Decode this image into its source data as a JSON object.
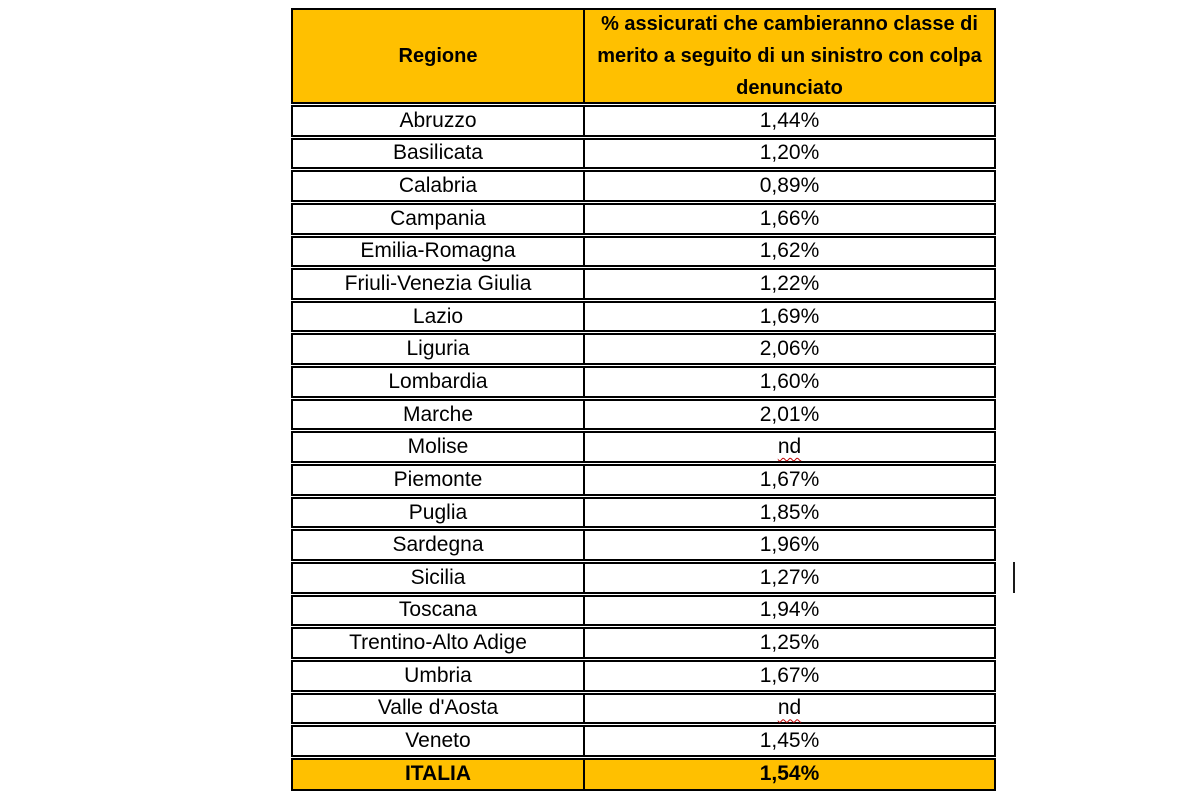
{
  "table": {
    "header": {
      "col1": "Regione",
      "col2": "% assicurati che cambieranno classe di merito a seguito di un sinistro con colpa denunciato"
    },
    "rows": [
      {
        "region": "Abruzzo",
        "value": "1,44%",
        "misspelled": false
      },
      {
        "region": "Basilicata",
        "value": "1,20%",
        "misspelled": false
      },
      {
        "region": "Calabria",
        "value": "0,89%",
        "misspelled": false
      },
      {
        "region": "Campania",
        "value": "1,66%",
        "misspelled": false
      },
      {
        "region": "Emilia-Romagna",
        "value": "1,62%",
        "misspelled": false
      },
      {
        "region": "Friuli-Venezia Giulia",
        "value": "1,22%",
        "misspelled": false
      },
      {
        "region": "Lazio",
        "value": "1,69%",
        "misspelled": false
      },
      {
        "region": "Liguria",
        "value": "2,06%",
        "misspelled": false
      },
      {
        "region": "Lombardia",
        "value": "1,60%",
        "misspelled": false
      },
      {
        "region": "Marche",
        "value": "2,01%",
        "misspelled": false
      },
      {
        "region": "Molise",
        "value": "nd",
        "misspelled": true
      },
      {
        "region": "Piemonte",
        "value": "1,67%",
        "misspelled": false
      },
      {
        "region": "Puglia",
        "value": "1,85%",
        "misspelled": false
      },
      {
        "region": "Sardegna",
        "value": "1,96%",
        "misspelled": false
      },
      {
        "region": "Sicilia",
        "value": "1,27%",
        "misspelled": false
      },
      {
        "region": "Toscana",
        "value": "1,94%",
        "misspelled": false
      },
      {
        "region": "Trentino-Alto Adige",
        "value": "1,25%",
        "misspelled": false
      },
      {
        "region": "Umbria",
        "value": "1,67%",
        "misspelled": false
      },
      {
        "region": "Valle d'Aosta",
        "value": "nd",
        "misspelled": true
      },
      {
        "region": "Veneto",
        "value": "1,45%",
        "misspelled": false
      }
    ],
    "footer": {
      "region": "ITALIA",
      "value": "1,54%"
    },
    "colors": {
      "accent_bg": "#FFC000",
      "border": "#000000",
      "text": "#000000",
      "misspell_underline": "#C00000"
    }
  },
  "chart_data": {
    "type": "table",
    "title": "% assicurati che cambieranno classe di merito a seguito di un sinistro con colpa denunciato",
    "categories": [
      "Abruzzo",
      "Basilicata",
      "Calabria",
      "Campania",
      "Emilia-Romagna",
      "Friuli-Venezia Giulia",
      "Lazio",
      "Liguria",
      "Lombardia",
      "Marche",
      "Molise",
      "Piemonte",
      "Puglia",
      "Sardegna",
      "Sicilia",
      "Toscana",
      "Trentino-Alto Adige",
      "Umbria",
      "Valle d'Aosta",
      "Veneto",
      "ITALIA"
    ],
    "values": [
      1.44,
      1.2,
      0.89,
      1.66,
      1.62,
      1.22,
      1.69,
      2.06,
      1.6,
      2.01,
      null,
      1.67,
      1.85,
      1.96,
      1.27,
      1.94,
      1.25,
      1.67,
      null,
      1.45,
      1.54
    ]
  }
}
